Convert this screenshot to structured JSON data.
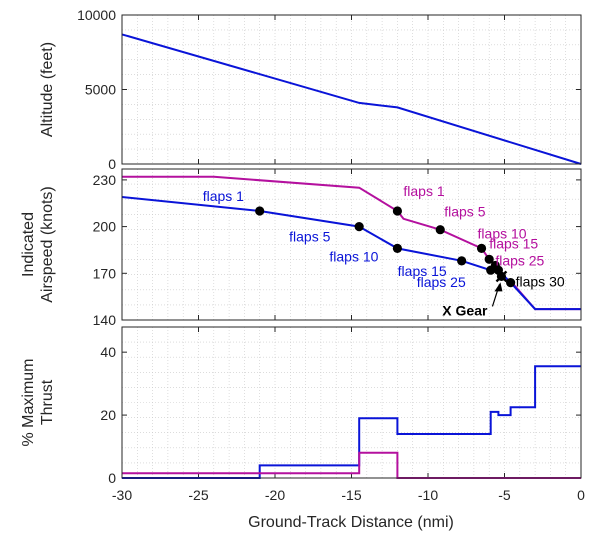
{
  "chart_data": [
    {
      "type": "line",
      "panel": "altitude",
      "ylabel": "Altitude (feet)",
      "xlim": [
        -30,
        0
      ],
      "ylim": [
        0,
        10000
      ],
      "yticks": [
        "0",
        "5000",
        "10000"
      ],
      "grid": "minor-dotted",
      "series": [
        {
          "color": "#0a14d8",
          "points": [
            [
              -30,
              8700
            ],
            [
              -14.5,
              4100
            ],
            [
              -12,
              3800
            ],
            [
              0,
              0
            ]
          ]
        }
      ]
    },
    {
      "type": "line",
      "panel": "airspeed",
      "ylabel_lines": [
        "Indicated",
        "Airspeed (knots)"
      ],
      "xlim": [
        -30,
        0
      ],
      "ylim": [
        140,
        237
      ],
      "yticks": [
        "140",
        "170",
        "200",
        "230"
      ],
      "grid": "minor-dotted",
      "series": [
        {
          "color": "#b4109e",
          "points": [
            [
              -30,
              232
            ],
            [
              -24,
              232
            ],
            [
              -14.5,
              225
            ],
            [
              -12,
              210
            ],
            [
              -11.6,
              205
            ],
            [
              -9.2,
              198
            ],
            [
              -6.5,
              186
            ],
            [
              -6,
              179
            ],
            [
              -5.6,
              175
            ],
            [
              -5.2,
              168
            ],
            [
              -4.6,
              165
            ],
            [
              -3,
              147
            ],
            [
              0,
              147
            ]
          ]
        },
        {
          "color": "#0a14d8",
          "points": [
            [
              -30,
              219
            ],
            [
              -21,
              210
            ],
            [
              -14.5,
              200
            ],
            [
              -12,
              186
            ],
            [
              -7.8,
              178
            ],
            [
              -5.9,
              172
            ],
            [
              -5.4,
              172
            ],
            [
              -4.6,
              164
            ],
            [
              -3,
              147
            ],
            [
              0,
              147
            ]
          ]
        }
      ],
      "markers_magenta": [
        [
          -12,
          210
        ],
        [
          -9.2,
          198
        ],
        [
          -6.5,
          186
        ],
        [
          -6,
          179
        ],
        [
          -5.6,
          175
        ],
        [
          -5.2,
          168
        ]
      ],
      "markers_blue": [
        [
          -21,
          210
        ],
        [
          -14.5,
          200
        ],
        [
          -12,
          186
        ],
        [
          -7.8,
          178
        ],
        [
          -5.9,
          172
        ],
        [
          -5.4,
          172
        ],
        [
          -4.6,
          164
        ]
      ],
      "annotations_blue": [
        {
          "text": "flaps  1",
          "at": [
            -21,
            210
          ],
          "dx": -57,
          "dy": -10
        },
        {
          "text": "flaps  5",
          "at": [
            -14.5,
            200
          ],
          "dx": -70,
          "dy": 15
        },
        {
          "text": "flaps 10",
          "at": [
            -12,
            186
          ],
          "dx": -68,
          "dy": 13
        },
        {
          "text": "flaps 15",
          "at": [
            -7.8,
            178
          ],
          "dx": -64,
          "dy": 15
        },
        {
          "text": "flaps 25",
          "at": [
            -5.9,
            172
          ],
          "dx": -74,
          "dy": 17
        }
      ],
      "annotations_magenta": [
        {
          "text": "flaps  1",
          "at": [
            -12,
            210
          ],
          "dx": 6,
          "dy": -15
        },
        {
          "text": "flaps  5",
          "at": [
            -9.2,
            198
          ],
          "dx": 4,
          "dy": -13
        },
        {
          "text": "flaps 10",
          "at": [
            -6.5,
            186
          ],
          "dx": -4,
          "dy": -10
        },
        {
          "text": "flaps 15",
          "at": [
            -6,
            179
          ],
          "dx": 0,
          "dy": -11
        },
        {
          "text": "flaps 25",
          "at": [
            -5.6,
            175
          ],
          "dx": 0,
          "dy": 0
        }
      ],
      "annotation_black": {
        "text": "flaps 30",
        "at": [
          -4.6,
          164
        ],
        "dx": 5,
        "dy": 4
      },
      "gear": {
        "label": "X Gear",
        "at": [
          -5.2,
          168
        ]
      }
    },
    {
      "type": "line",
      "panel": "thrust",
      "ylabel_lines": [
        "% Maximum",
        "Thrust"
      ],
      "xlabel": "Ground-Track Distance (nmi)",
      "xlim": [
        -30,
        0
      ],
      "ylim": [
        0,
        48
      ],
      "yticks": [
        "0",
        "20",
        "40"
      ],
      "xticks": [
        "-30",
        "-25",
        "-20",
        "-15",
        "-10",
        "-5",
        "0"
      ],
      "grid": "minor-dotted",
      "series": [
        {
          "color": "#0a14d8",
          "points": [
            [
              -30,
              0
            ],
            [
              -21,
              0
            ],
            [
              -21,
              4
            ],
            [
              -14.5,
              4
            ],
            [
              -14.5,
              19
            ],
            [
              -12,
              19
            ],
            [
              -12,
              14
            ],
            [
              -5.9,
              14
            ],
            [
              -5.9,
              21
            ],
            [
              -5.4,
              21
            ],
            [
              -5.4,
              20
            ],
            [
              -4.6,
              20
            ],
            [
              -4.6,
              22.5
            ],
            [
              -3,
              22.5
            ],
            [
              -3,
              35.5
            ],
            [
              0,
              35.5
            ]
          ]
        },
        {
          "color": "#b4109e",
          "points": [
            [
              -30,
              1.5
            ],
            [
              -14.5,
              1.5
            ],
            [
              -14.5,
              8
            ],
            [
              -12,
              8
            ],
            [
              -12,
              0
            ],
            [
              0,
              0
            ]
          ]
        }
      ]
    }
  ]
}
